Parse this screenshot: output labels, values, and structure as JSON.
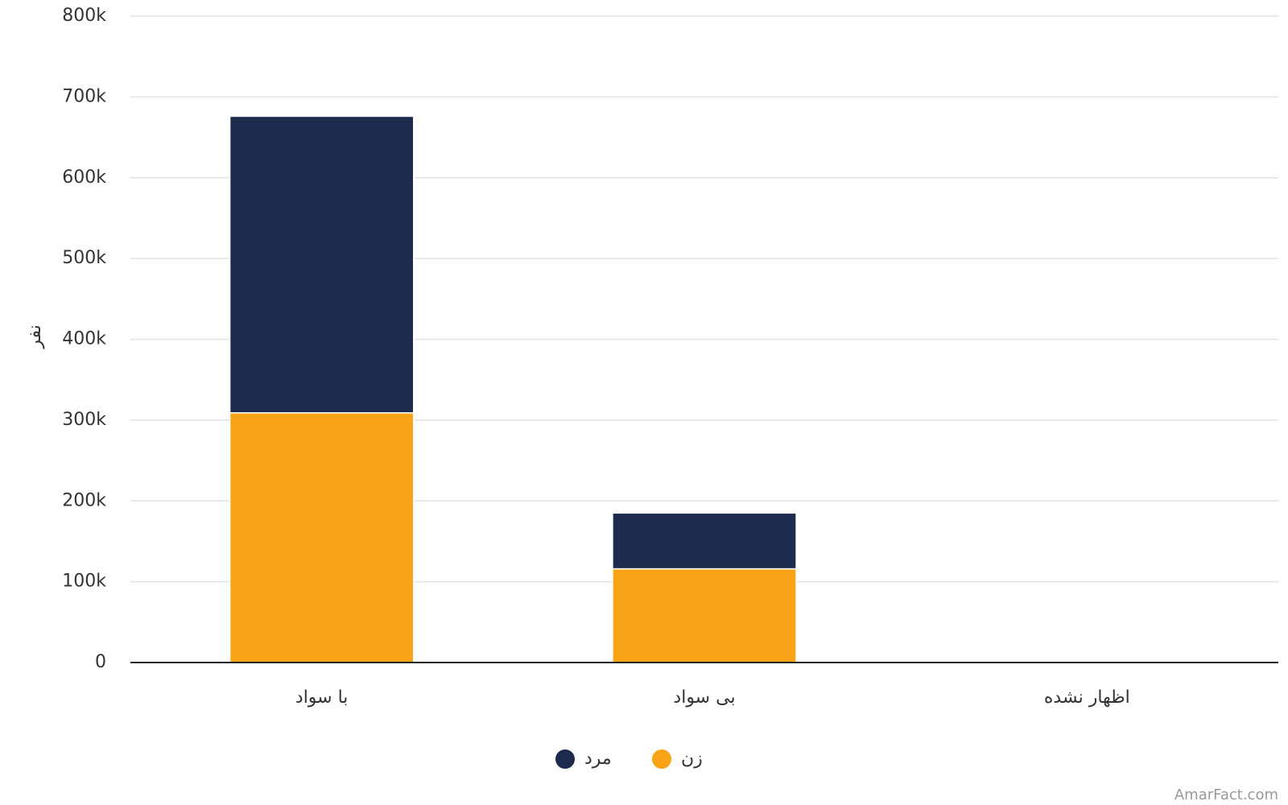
{
  "chart_data": {
    "type": "stacked_bar",
    "y_label": "نفر",
    "categories": [
      "با سواد",
      "بی سواد",
      "اظهار نشده"
    ],
    "series": [
      {
        "name": "زن",
        "color": "#f9a417",
        "values": [
          309000,
          116000,
          0
        ]
      },
      {
        "name": "مرد",
        "color": "#1c2a4d",
        "values": [
          367000,
          69000,
          0
        ]
      }
    ],
    "ylim": [
      0,
      800000
    ],
    "yticks": [
      0,
      {
        "value": 100000,
        "label": "100k"
      },
      {
        "value": 200000,
        "label": "200k"
      },
      {
        "value": 300000,
        "label": "300k"
      },
      {
        "value": 400000,
        "label": "400k"
      },
      {
        "value": 500000,
        "label": "500k"
      },
      {
        "value": 600000,
        "label": "600k"
      },
      {
        "value": 700000,
        "label": "700k"
      },
      {
        "value": 800000,
        "label": "800k"
      }
    ],
    "grid": true,
    "credit": "AmarFact.com"
  }
}
